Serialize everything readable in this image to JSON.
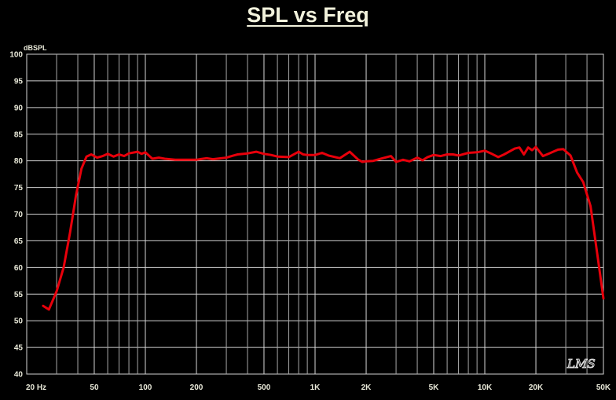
{
  "chart_data": {
    "type": "line",
    "title": "SPL vs Freq",
    "ylabel": "dBSPL",
    "xlabel": "",
    "xscale": "log",
    "xlim": [
      20,
      50000
    ],
    "ylim": [
      40,
      100
    ],
    "y_ticks": [
      "100",
      "95",
      "90",
      "85",
      "80",
      "75",
      "70",
      "65",
      "60",
      "55",
      "50",
      "45",
      "40"
    ],
    "x_tick_labels": [
      {
        "value": 20,
        "label": "20 Hz"
      },
      {
        "value": 50,
        "label": "50"
      },
      {
        "value": 100,
        "label": "100"
      },
      {
        "value": 200,
        "label": "200"
      },
      {
        "value": 500,
        "label": "500"
      },
      {
        "value": 1000,
        "label": "1K"
      },
      {
        "value": 2000,
        "label": "2K"
      },
      {
        "value": 5000,
        "label": "5K"
      },
      {
        "value": 10000,
        "label": "10K"
      },
      {
        "value": 20000,
        "label": "20K"
      },
      {
        "value": 50000,
        "label": "50K"
      }
    ],
    "grid": true,
    "series": [
      {
        "color": "#e8000b",
        "x": [
          25,
          27,
          30,
          33,
          36,
          39,
          42,
          45,
          48,
          52,
          56,
          60,
          65,
          70,
          75,
          80,
          90,
          95,
          100,
          110,
          120,
          130,
          150,
          170,
          200,
          230,
          250,
          300,
          330,
          350,
          400,
          450,
          500,
          550,
          600,
          700,
          800,
          850,
          900,
          1000,
          1100,
          1200,
          1400,
          1600,
          1800,
          1900,
          2000,
          2200,
          2500,
          2800,
          3000,
          3300,
          3600,
          4000,
          4300,
          4600,
          5000,
          5500,
          6000,
          6500,
          7000,
          8000,
          9000,
          10000,
          11000,
          12000,
          13000,
          15000,
          16000,
          17000,
          18000,
          19000,
          20000,
          22000,
          24000,
          27000,
          29000,
          32000,
          35000,
          38000,
          42000,
          46000,
          50000
        ],
        "y": [
          52.8,
          52.1,
          55.5,
          60.0,
          66.5,
          73.5,
          78.5,
          80.8,
          81.2,
          80.6,
          80.9,
          81.3,
          80.8,
          81.2,
          80.9,
          81.4,
          81.7,
          81.3,
          81.6,
          80.4,
          80.6,
          80.4,
          80.2,
          80.2,
          80.2,
          80.5,
          80.3,
          80.6,
          81.0,
          81.2,
          81.4,
          81.7,
          81.3,
          81.1,
          80.8,
          80.7,
          81.7,
          81.2,
          81.1,
          81.1,
          81.5,
          81.0,
          80.5,
          81.7,
          80.2,
          79.8,
          79.9,
          80.0,
          80.5,
          80.9,
          79.8,
          80.2,
          79.9,
          80.6,
          80.1,
          80.7,
          81.1,
          80.9,
          81.2,
          81.2,
          81.0,
          81.5,
          81.6,
          81.9,
          81.3,
          80.7,
          81.2,
          82.3,
          82.5,
          81.2,
          82.5,
          82.0,
          82.6,
          80.9,
          81.4,
          82.1,
          82.2,
          81.0,
          77.8,
          76.0,
          71.5,
          62.5,
          54.2
        ]
      }
    ],
    "watermark": "LMS"
  }
}
